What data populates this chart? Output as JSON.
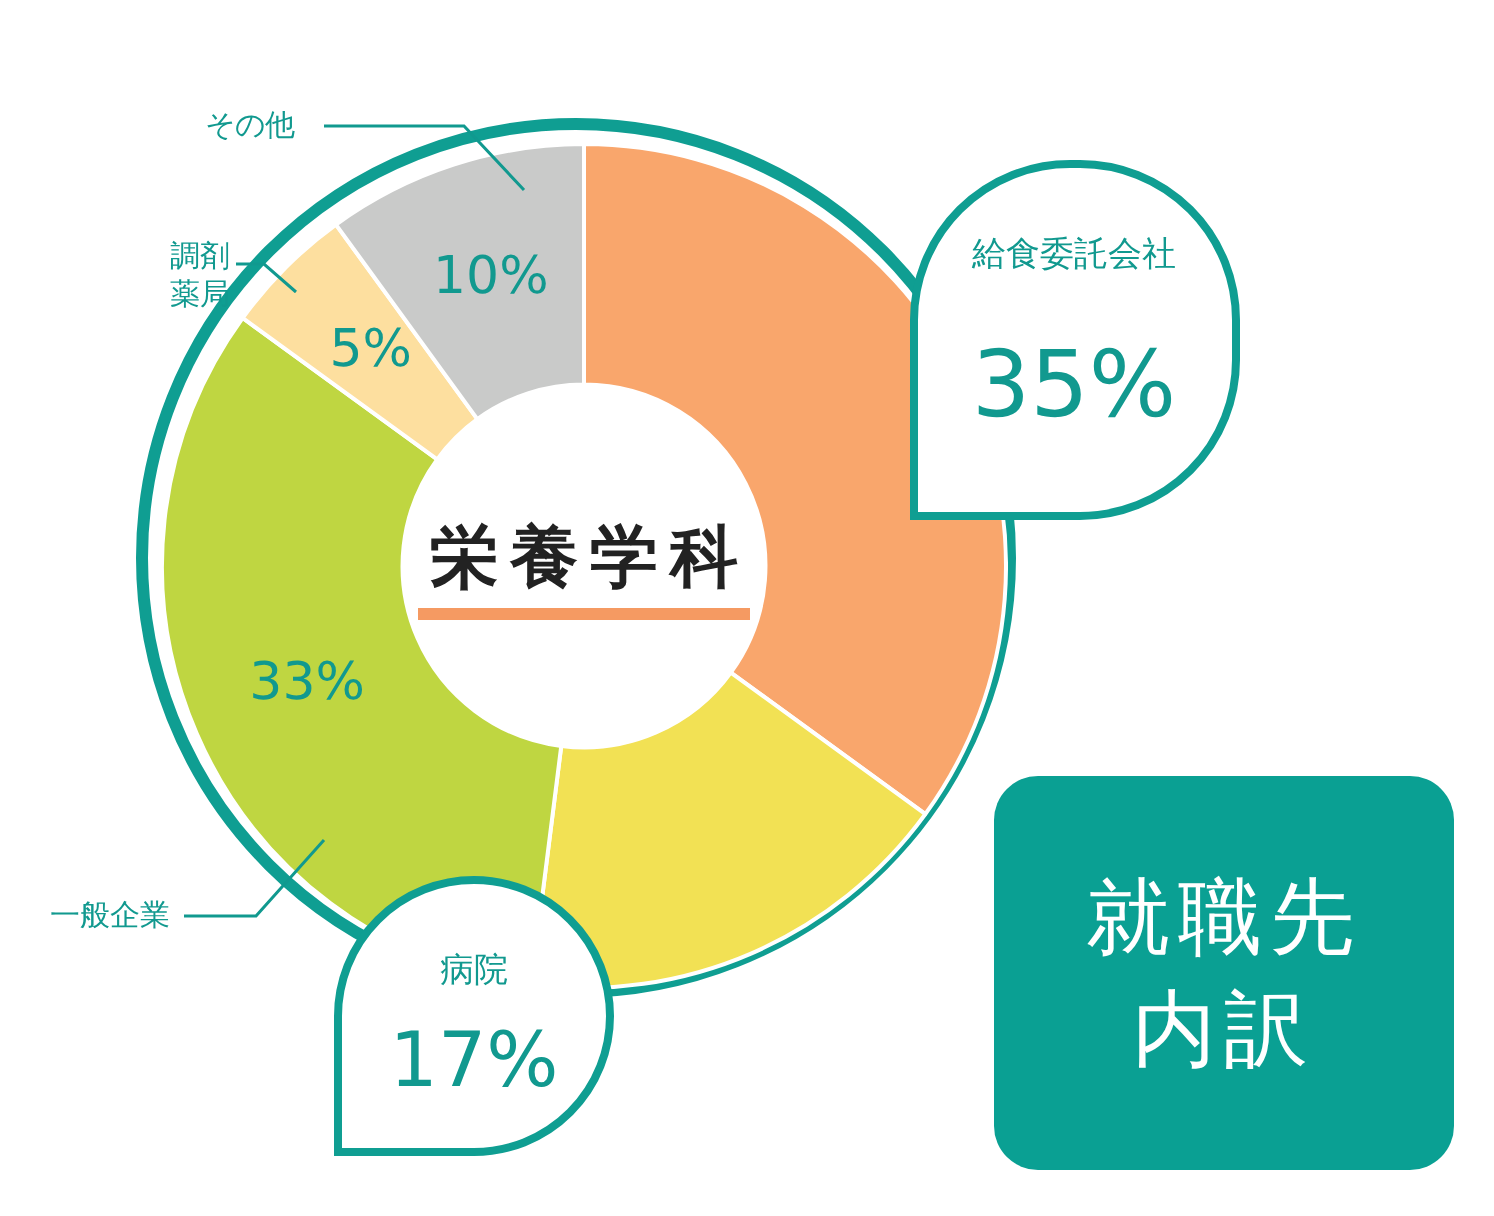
{
  "chart_data": {
    "type": "donut",
    "title": "栄養学科",
    "annotations": [
      "就職先内訳"
    ],
    "categories": [
      "給食委託会社",
      "病院",
      "一般企業",
      "調剤薬局",
      "その他"
    ],
    "values": [
      35,
      17,
      33,
      5,
      10
    ],
    "colors": [
      "#f9a66c",
      "#f2e154",
      "#bfd641",
      "#fddf9f",
      "#c9cac9"
    ],
    "value_labels": [
      "35%",
      "17%",
      "33%",
      "5%",
      "10%"
    ],
    "legend": false
  }
}
